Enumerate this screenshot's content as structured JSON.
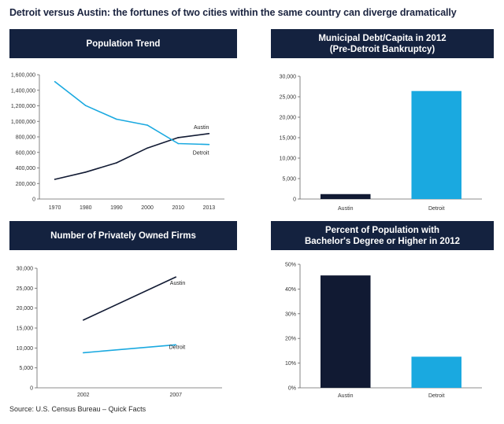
{
  "headline": "Detroit versus Austin: the fortunes of two cities within the same country can diverge dramatically",
  "source": "Source: U.S. Census Bureau – Quick Facts",
  "colors": {
    "header_bg": "#14223f",
    "austin": "#111a33",
    "detroit": "#1aa9e0"
  },
  "chart_data": [
    {
      "type": "line",
      "title": "Population Trend",
      "x": [
        "1970",
        "1980",
        "1990",
        "2000",
        "2010",
        "2013"
      ],
      "series": [
        {
          "name": "Austin",
          "values": [
            253539,
            345890,
            465622,
            656562,
            790390,
            842592
          ]
        },
        {
          "name": "Detroit",
          "values": [
            1511482,
            1203339,
            1027974,
            951270,
            713777,
            701475
          ]
        }
      ],
      "ylim": [
        0,
        1600000
      ],
      "yticks": [
        0,
        200000,
        400000,
        600000,
        800000,
        1000000,
        1200000,
        1400000,
        1600000
      ],
      "ytick_labels": [
        "0",
        "200,000",
        "400,000",
        "600,000",
        "800,000",
        "1,000,000",
        "1,200,000",
        "1,400,000",
        "1,600,000"
      ],
      "grid": false,
      "legend": "inline labels"
    },
    {
      "type": "bar",
      "title": "Municipal Debt/Capita in 2012",
      "subtitle": "(Pre-Detroit Bankruptcy)",
      "categories": [
        "Austin",
        "Detroit"
      ],
      "values": [
        1200,
        26400
      ],
      "ylim": [
        0,
        30000
      ],
      "yticks": [
        0,
        5000,
        10000,
        15000,
        20000,
        25000,
        30000
      ],
      "ytick_labels": [
        "0",
        "5,000",
        "10,000",
        "15,000",
        "20,000",
        "25,000",
        "30,000"
      ],
      "grid": false
    },
    {
      "type": "line",
      "title": "Number of Privately Owned Firms",
      "x": [
        "2002",
        "2007"
      ],
      "series": [
        {
          "name": "Austin",
          "values": [
            17000,
            27800
          ]
        },
        {
          "name": "Detroit",
          "values": [
            8800,
            10800
          ]
        }
      ],
      "ylim": [
        0,
        30000
      ],
      "yticks": [
        0,
        5000,
        10000,
        15000,
        20000,
        25000,
        30000
      ],
      "ytick_labels": [
        "0",
        "5,000",
        "10,000",
        "15,000",
        "20,000",
        "25,000",
        "30,000"
      ],
      "grid": false,
      "legend": "inline labels"
    },
    {
      "type": "bar",
      "title": "Percent of Population with",
      "subtitle": "Bachelor's Degree or Higher in 2012",
      "categories": [
        "Austin",
        "Detroit"
      ],
      "values": [
        45.5,
        12.6
      ],
      "ylim": [
        0,
        50
      ],
      "yticks": [
        0,
        10,
        20,
        30,
        40,
        50
      ],
      "ytick_labels": [
        "0%",
        "10%",
        "20%",
        "30%",
        "40%",
        "50%"
      ],
      "grid": false
    }
  ]
}
